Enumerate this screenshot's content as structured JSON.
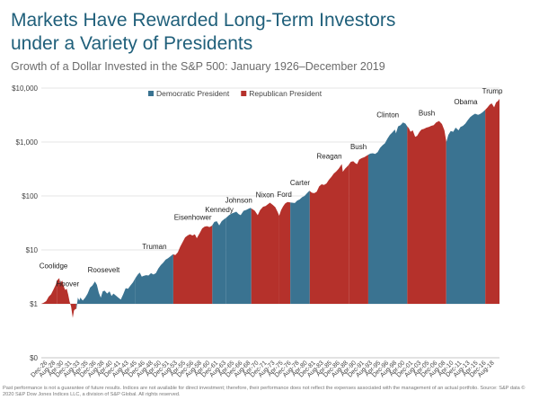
{
  "title_line1": "Markets Have Rewarded Long-Term Investors",
  "title_line2": "under a Variety of Presidents",
  "subtitle": "Growth of a Dollar Invested in the S&P 500: January 1926–December 2019",
  "footnote_line1": "Past performance is not a guarantee of future results. Indices are not available for direct investment; therefore, their performance does not reflect the expenses associated with the management of an actual portfolio. Source: S&P data ©",
  "footnote_line2": "2020 S&P Dow Jones Indices LLC, a division of S&P Global. All rights reserved.",
  "colors": {
    "democratic": "#3a7391",
    "republican": "#b5312b",
    "title": "#1f5f7a"
  },
  "chart_data": {
    "type": "area",
    "scale": "log",
    "y_ticks": [
      {
        "value": 0,
        "label": "$0"
      },
      {
        "value": 1,
        "label": "$1"
      },
      {
        "value": 10,
        "label": "$10"
      },
      {
        "value": 100,
        "label": "$100"
      },
      {
        "value": 1000,
        "label": "$1,000"
      },
      {
        "value": 10000,
        "label": "$10,000"
      }
    ],
    "x_range": [
      1926.0,
      2020.0
    ],
    "x_ticks": [
      "Dec-26",
      "Aug-28",
      "Apr-30",
      "Dec-31",
      "Aug-33",
      "Apr-35",
      "Dec-36",
      "Aug-38",
      "Apr-40",
      "Dec-41",
      "Aug-43",
      "Apr-45",
      "Dec-46",
      "Aug-48",
      "Apr-50",
      "Dec-51",
      "Aug-53",
      "Apr-55",
      "Dec-56",
      "Aug-58",
      "Apr-60",
      "Dec-61",
      "Aug-63",
      "Apr-65",
      "Dec-66",
      "Aug-68",
      "Apr-70",
      "Dec-71",
      "Aug-73",
      "Apr-75",
      "Dec-76",
      "Aug-78",
      "Apr-80",
      "Dec-81",
      "Aug-83",
      "Apr-85",
      "Dec-86",
      "Aug-88",
      "Apr-90",
      "Dec-91",
      "Aug-93",
      "Apr-95",
      "Dec-96",
      "Aug-98",
      "Apr-00",
      "Dec-01",
      "Aug-03",
      "Apr-05",
      "Dec-06",
      "Aug-08",
      "Apr-10",
      "Dec-11",
      "Aug-13",
      "Apr-15",
      "Dec-16",
      "Aug-18"
    ],
    "x_tick_start": 1926.92,
    "x_tick_step": 1.6667,
    "legend": {
      "position": "top-center",
      "items": [
        {
          "label": "Democratic President",
          "party": "D"
        },
        {
          "label": "Republican President",
          "party": "R"
        }
      ]
    },
    "series_points": [
      [
        1926.0,
        1.0
      ],
      [
        1926.5,
        1.05
      ],
      [
        1927.0,
        1.12
      ],
      [
        1927.5,
        1.35
      ],
      [
        1928.0,
        1.5
      ],
      [
        1928.5,
        1.85
      ],
      [
        1929.0,
        2.3
      ],
      [
        1929.2,
        2.7
      ],
      [
        1929.7,
        3.0
      ],
      [
        1929.85,
        2.2
      ],
      [
        1930.0,
        2.5
      ],
      [
        1930.3,
        2.7
      ],
      [
        1930.6,
        2.1
      ],
      [
        1930.9,
        1.8
      ],
      [
        1931.2,
        1.9
      ],
      [
        1931.5,
        1.5
      ],
      [
        1931.8,
        1.1
      ],
      [
        1932.1,
        0.9
      ],
      [
        1932.45,
        0.55
      ],
      [
        1932.7,
        0.75
      ],
      [
        1933.0,
        0.8
      ],
      [
        1933.2,
        0.8
      ],
      [
        1933.5,
        1.3
      ],
      [
        1933.8,
        1.15
      ],
      [
        1934.0,
        1.3
      ],
      [
        1934.5,
        1.15
      ],
      [
        1935.0,
        1.3
      ],
      [
        1935.5,
        1.55
      ],
      [
        1936.0,
        2.0
      ],
      [
        1936.5,
        2.2
      ],
      [
        1937.0,
        2.6
      ],
      [
        1937.4,
        2.25
      ],
      [
        1937.8,
        1.6
      ],
      [
        1938.2,
        1.3
      ],
      [
        1938.6,
        1.7
      ],
      [
        1939.0,
        1.75
      ],
      [
        1939.5,
        1.55
      ],
      [
        1940.0,
        1.7
      ],
      [
        1940.4,
        1.4
      ],
      [
        1940.8,
        1.55
      ],
      [
        1941.2,
        1.45
      ],
      [
        1941.8,
        1.3
      ],
      [
        1942.3,
        1.2
      ],
      [
        1942.8,
        1.5
      ],
      [
        1943.3,
        1.95
      ],
      [
        1943.8,
        1.9
      ],
      [
        1944.3,
        2.2
      ],
      [
        1944.8,
        2.5
      ],
      [
        1945.3,
        3.0
      ],
      [
        1945.8,
        3.5
      ],
      [
        1946.2,
        3.8
      ],
      [
        1946.6,
        3.2
      ],
      [
        1947.0,
        3.3
      ],
      [
        1947.5,
        3.4
      ],
      [
        1948.0,
        3.35
      ],
      [
        1948.5,
        3.7
      ],
      [
        1949.0,
        3.5
      ],
      [
        1949.5,
        3.7
      ],
      [
        1950.0,
        4.5
      ],
      [
        1950.5,
        5.2
      ],
      [
        1951.0,
        5.8
      ],
      [
        1951.5,
        6.6
      ],
      [
        1952.0,
        7.0
      ],
      [
        1952.5,
        7.6
      ],
      [
        1953.0,
        8.3
      ],
      [
        1953.5,
        8.0
      ],
      [
        1954.0,
        9.0
      ],
      [
        1954.5,
        11.5
      ],
      [
        1955.0,
        14.0
      ],
      [
        1955.5,
        17.0
      ],
      [
        1956.0,
        18.5
      ],
      [
        1956.5,
        19.5
      ],
      [
        1957.0,
        18.5
      ],
      [
        1957.5,
        19.5
      ],
      [
        1957.9,
        16.5
      ],
      [
        1958.5,
        20.5
      ],
      [
        1959.0,
        25.0
      ],
      [
        1959.5,
        27.0
      ],
      [
        1960.0,
        27.5
      ],
      [
        1960.5,
        26.5
      ],
      [
        1961.0,
        28.0
      ],
      [
        1961.5,
        33.0
      ],
      [
        1962.0,
        34.0
      ],
      [
        1962.5,
        28.5
      ],
      [
        1963.0,
        34.0
      ],
      [
        1963.5,
        37.0
      ],
      [
        1964.0,
        40.0
      ],
      [
        1964.5,
        44.0
      ],
      [
        1965.0,
        47.0
      ],
      [
        1965.5,
        49.0
      ],
      [
        1966.0,
        51.0
      ],
      [
        1966.5,
        46.0
      ],
      [
        1966.9,
        44.0
      ],
      [
        1967.5,
        53.0
      ],
      [
        1968.0,
        55.0
      ],
      [
        1968.5,
        58.0
      ],
      [
        1968.9,
        60.0
      ],
      [
        1969.3,
        57.0
      ],
      [
        1969.8,
        53.0
      ],
      [
        1970.4,
        44.0
      ],
      [
        1970.9,
        55.0
      ],
      [
        1971.5,
        63.0
      ],
      [
        1972.0,
        65.0
      ],
      [
        1972.9,
        75.0
      ],
      [
        1973.5,
        68.0
      ],
      [
        1974.0,
        62.0
      ],
      [
        1974.5,
        50.0
      ],
      [
        1974.8,
        43.0
      ],
      [
        1975.2,
        55.0
      ],
      [
        1975.6,
        64.0
      ],
      [
        1976.0,
        72.0
      ],
      [
        1976.5,
        77.0
      ],
      [
        1977.0,
        76.0
      ],
      [
        1977.5,
        75.0
      ],
      [
        1978.0,
        74.0
      ],
      [
        1978.5,
        82.0
      ],
      [
        1979.0,
        86.0
      ],
      [
        1979.5,
        95.0
      ],
      [
        1980.0,
        100.0
      ],
      [
        1980.5,
        112.0
      ],
      [
        1981.0,
        125.0
      ],
      [
        1981.5,
        115.0
      ],
      [
        1982.0,
        113.0
      ],
      [
        1982.5,
        120.0
      ],
      [
        1983.0,
        150.0
      ],
      [
        1983.5,
        165.0
      ],
      [
        1984.0,
        160.0
      ],
      [
        1984.5,
        170.0
      ],
      [
        1985.0,
        200.0
      ],
      [
        1985.5,
        225.0
      ],
      [
        1986.0,
        260.0
      ],
      [
        1986.5,
        285.0
      ],
      [
        1987.0,
        320.0
      ],
      [
        1987.65,
        390.0
      ],
      [
        1987.85,
        280.0
      ],
      [
        1988.3,
        320.0
      ],
      [
        1989.0,
        370.0
      ],
      [
        1989.5,
        430.0
      ],
      [
        1990.0,
        440.0
      ],
      [
        1990.5,
        400.0
      ],
      [
        1990.8,
        390.0
      ],
      [
        1991.2,
        470.0
      ],
      [
        1991.7,
        500.0
      ],
      [
        1992.3,
        525.0
      ],
      [
        1993.0,
        575.0
      ],
      [
        1993.5,
        610.0
      ],
      [
        1994.0,
        620.0
      ],
      [
        1994.5,
        600.0
      ],
      [
        1995.0,
        650.0
      ],
      [
        1995.5,
        780.0
      ],
      [
        1996.0,
        870.0
      ],
      [
        1996.5,
        950.0
      ],
      [
        1997.0,
        1150.0
      ],
      [
        1997.5,
        1350.0
      ],
      [
        1998.0,
        1500.0
      ],
      [
        1998.55,
        1700.0
      ],
      [
        1998.75,
        1450.0
      ],
      [
        1999.2,
        1950.0
      ],
      [
        1999.7,
        2050.0
      ],
      [
        2000.2,
        2300.0
      ],
      [
        2000.7,
        2200.0
      ],
      [
        2001.0,
        2000.0
      ],
      [
        2001.4,
        1800.0
      ],
      [
        2001.75,
        1550.0
      ],
      [
        2002.2,
        1650.0
      ],
      [
        2002.7,
        1250.0
      ],
      [
        2003.1,
        1300.0
      ],
      [
        2003.6,
        1550.0
      ],
      [
        2004.0,
        1700.0
      ],
      [
        2004.5,
        1750.0
      ],
      [
        2005.0,
        1850.0
      ],
      [
        2005.5,
        1900.0
      ],
      [
        2006.0,
        2000.0
      ],
      [
        2006.5,
        2050.0
      ],
      [
        2007.0,
        2300.0
      ],
      [
        2007.6,
        2450.0
      ],
      [
        2008.2,
        2150.0
      ],
      [
        2008.7,
        1650.0
      ],
      [
        2009.1,
        1000.0
      ],
      [
        2009.5,
        1350.0
      ],
      [
        2010.0,
        1600.0
      ],
      [
        2010.5,
        1550.0
      ],
      [
        2011.0,
        1850.0
      ],
      [
        2011.6,
        1650.0
      ],
      [
        2012.0,
        1900.0
      ],
      [
        2012.5,
        2000.0
      ],
      [
        2013.0,
        2200.0
      ],
      [
        2013.5,
        2550.0
      ],
      [
        2014.0,
        2900.0
      ],
      [
        2014.5,
        3150.0
      ],
      [
        2015.0,
        3350.0
      ],
      [
        2015.6,
        3200.0
      ],
      [
        2016.0,
        3300.0
      ],
      [
        2016.5,
        3550.0
      ],
      [
        2017.0,
        3900.0
      ],
      [
        2017.5,
        4350.0
      ],
      [
        2018.0,
        4950.0
      ],
      [
        2018.4,
        5200.0
      ],
      [
        2018.9,
        4400.0
      ],
      [
        2019.3,
        5400.0
      ],
      [
        2019.7,
        5800.0
      ],
      [
        2020.0,
        6300.0
      ]
    ],
    "presidencies": [
      {
        "name": "Coolidge",
        "party": "R",
        "start": 1926.0,
        "end": 1929.17
      },
      {
        "name": "Hoover",
        "party": "R",
        "start": 1929.17,
        "end": 1933.17
      },
      {
        "name": "Roosevelt",
        "party": "D",
        "start": 1933.17,
        "end": 1945.33
      },
      {
        "name": "Truman",
        "party": "D",
        "start": 1945.33,
        "end": 1953.08
      },
      {
        "name": "Eisenhower",
        "party": "R",
        "start": 1953.08,
        "end": 1961.08
      },
      {
        "name": "Kennedy",
        "party": "D",
        "start": 1961.08,
        "end": 1963.92
      },
      {
        "name": "Johnson",
        "party": "D",
        "start": 1963.92,
        "end": 1969.08
      },
      {
        "name": "Nixon",
        "party": "R",
        "start": 1969.08,
        "end": 1974.67
      },
      {
        "name": "Ford",
        "party": "R",
        "start": 1974.67,
        "end": 1977.08
      },
      {
        "name": "Carter",
        "party": "D",
        "start": 1977.08,
        "end": 1981.08
      },
      {
        "name": "Reagan",
        "party": "R",
        "start": 1981.08,
        "end": 1989.08
      },
      {
        "name": "Bush",
        "party": "R",
        "start": 1989.08,
        "end": 1993.08
      },
      {
        "name": "Clinton",
        "party": "D",
        "start": 1993.08,
        "end": 2001.08
      },
      {
        "name": "Bush",
        "party": "R",
        "start": 2001.08,
        "end": 2009.08
      },
      {
        "name": "Obama",
        "party": "D",
        "start": 2009.08,
        "end": 2017.08
      },
      {
        "name": "Trump",
        "party": "R",
        "start": 2017.08,
        "end": 2020.0
      }
    ]
  }
}
